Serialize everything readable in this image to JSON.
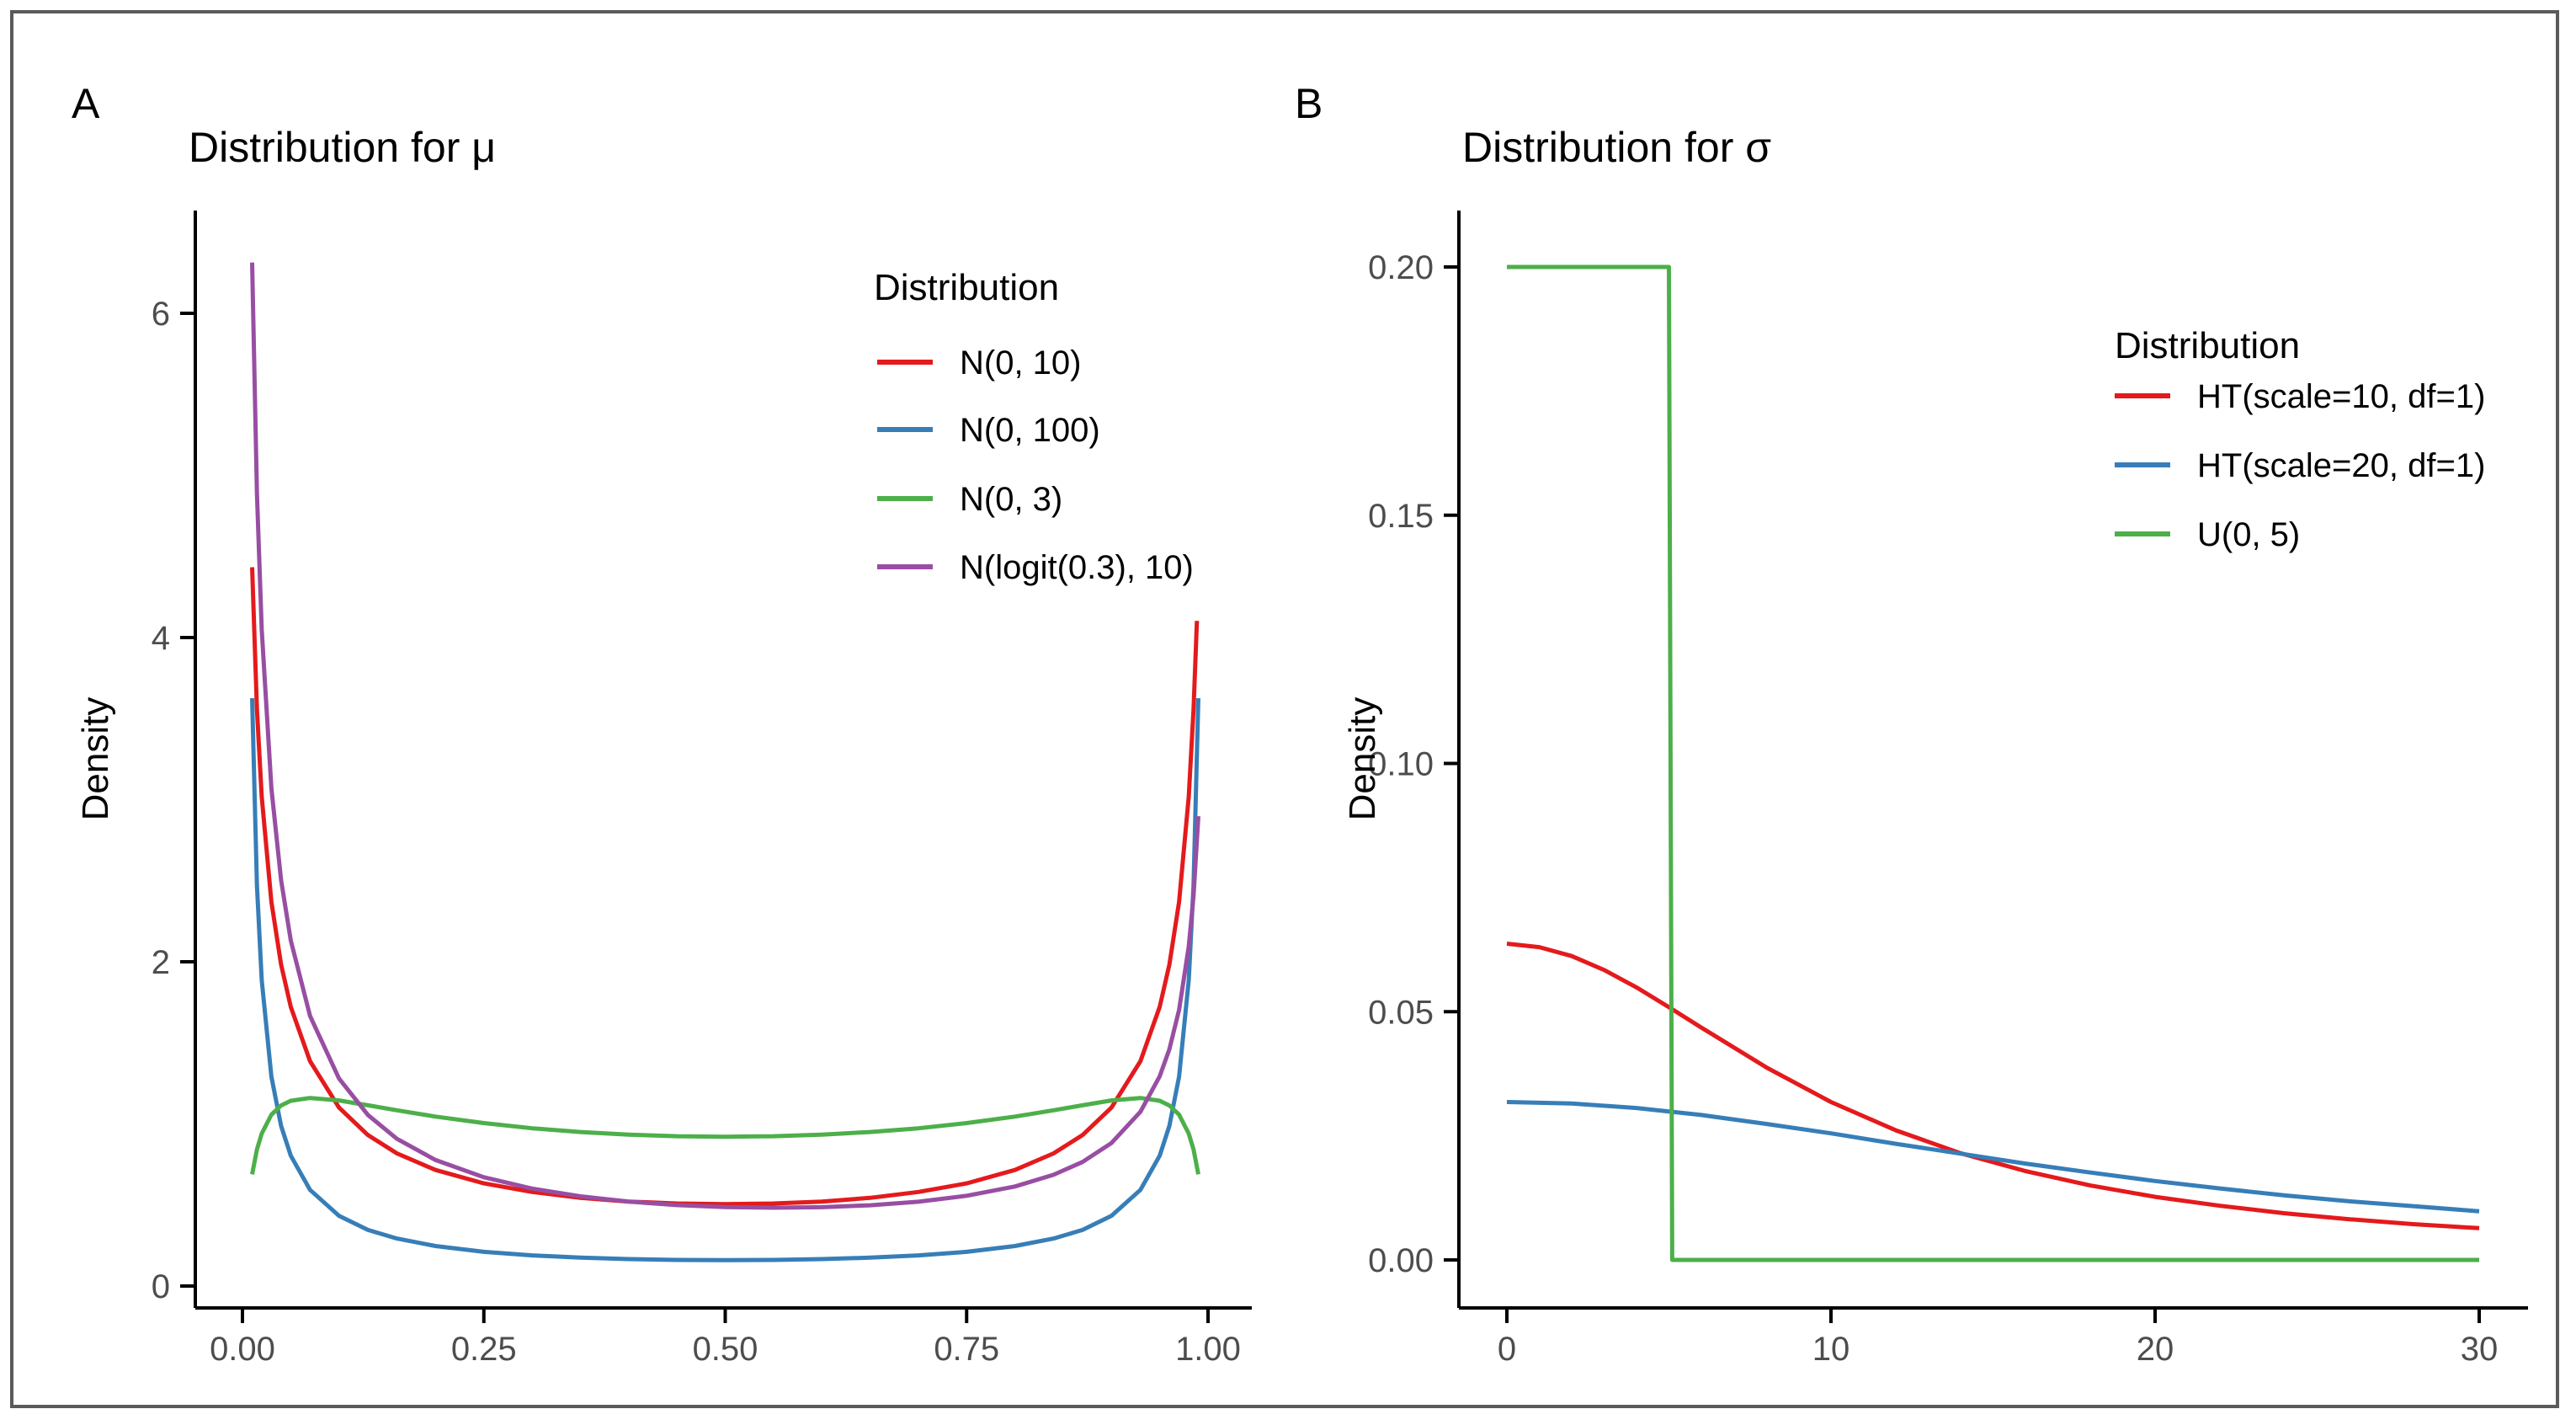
{
  "figure": {
    "background": "#ffffff",
    "border_color": "#5a5a5a"
  },
  "chart_data": [
    {
      "type": "line",
      "panel_label": "A",
      "title": "Distribution for μ",
      "xlabel": "",
      "ylabel": "Density",
      "xlim": [
        0,
        1
      ],
      "ylim": [
        0,
        6.63
      ],
      "grid": false,
      "x_axis": {
        "ticks": [
          0,
          0.25,
          0.5,
          0.75,
          1.0
        ],
        "labels": [
          "0.00",
          "0.25",
          "0.50",
          "0.75",
          "1.00"
        ]
      },
      "y_axis": {
        "ticks": [
          0,
          2,
          4,
          6
        ],
        "labels": [
          "0",
          "2",
          "4",
          "6"
        ]
      },
      "legend": {
        "title": "Distribution",
        "position": "inside-upper-right"
      },
      "series": [
        {
          "name": "N(0, 10)",
          "color": "#E41A1C",
          "points": [
            [
              0.01,
              4.434
            ],
            [
              0.015,
              3.558
            ],
            [
              0.02,
              3.018
            ],
            [
              0.03,
              2.369
            ],
            [
              0.04,
              1.983
            ],
            [
              0.05,
              1.722
            ],
            [
              0.07,
              1.387
            ],
            [
              0.1,
              1.101
            ],
            [
              0.13,
              0.931
            ],
            [
              0.16,
              0.818
            ],
            [
              0.2,
              0.716
            ],
            [
              0.25,
              0.633
            ],
            [
              0.3,
              0.58
            ],
            [
              0.35,
              0.544
            ],
            [
              0.4,
              0.521
            ],
            [
              0.45,
              0.509
            ],
            [
              0.5,
              0.505
            ],
            [
              0.55,
              0.509
            ],
            [
              0.6,
              0.521
            ],
            [
              0.65,
              0.544
            ],
            [
              0.7,
              0.58
            ],
            [
              0.75,
              0.633
            ],
            [
              0.8,
              0.716
            ],
            [
              0.84,
              0.818
            ],
            [
              0.87,
              0.931
            ],
            [
              0.9,
              1.101
            ],
            [
              0.93,
              1.387
            ],
            [
              0.95,
              1.722
            ],
            [
              0.96,
              1.983
            ],
            [
              0.97,
              2.369
            ],
            [
              0.98,
              3.018
            ],
            [
              0.985,
              3.558
            ],
            [
              0.9885,
              4.103
            ]
          ]
        },
        {
          "name": "N(0, 100)",
          "color": "#377EB8",
          "points": [
            [
              0.01,
              3.626
            ],
            [
              0.015,
              2.474
            ],
            [
              0.02,
              1.887
            ],
            [
              0.03,
              1.291
            ],
            [
              0.04,
              0.988
            ],
            [
              0.05,
              0.804
            ],
            [
              0.07,
              0.593
            ],
            [
              0.1,
              0.433
            ],
            [
              0.13,
              0.346
            ],
            [
              0.16,
              0.293
            ],
            [
              0.2,
              0.247
            ],
            [
              0.25,
              0.211
            ],
            [
              0.3,
              0.189
            ],
            [
              0.35,
              0.175
            ],
            [
              0.4,
              0.166
            ],
            [
              0.45,
              0.161
            ],
            [
              0.5,
              0.16
            ],
            [
              0.55,
              0.161
            ],
            [
              0.6,
              0.166
            ],
            [
              0.65,
              0.175
            ],
            [
              0.7,
              0.189
            ],
            [
              0.75,
              0.211
            ],
            [
              0.8,
              0.247
            ],
            [
              0.84,
              0.293
            ],
            [
              0.87,
              0.346
            ],
            [
              0.9,
              0.433
            ],
            [
              0.93,
              0.593
            ],
            [
              0.95,
              0.804
            ],
            [
              0.96,
              0.988
            ],
            [
              0.97,
              1.291
            ],
            [
              0.98,
              1.887
            ],
            [
              0.985,
              2.474
            ],
            [
              0.99,
              3.626
            ]
          ]
        },
        {
          "name": "N(0, 3)",
          "color": "#4DAF4A",
          "points": [
            [
              0.01,
              0.689
            ],
            [
              0.015,
              0.842
            ],
            [
              0.02,
              0.94
            ],
            [
              0.03,
              1.057
            ],
            [
              0.04,
              1.114
            ],
            [
              0.05,
              1.143
            ],
            [
              0.07,
              1.16
            ],
            [
              0.1,
              1.145
            ],
            [
              0.13,
              1.115
            ],
            [
              0.16,
              1.084
            ],
            [
              0.2,
              1.045
            ],
            [
              0.25,
              1.005
            ],
            [
              0.3,
              0.973
            ],
            [
              0.35,
              0.95
            ],
            [
              0.4,
              0.934
            ],
            [
              0.45,
              0.924
            ],
            [
              0.5,
              0.921
            ],
            [
              0.55,
              0.924
            ],
            [
              0.6,
              0.934
            ],
            [
              0.65,
              0.95
            ],
            [
              0.7,
              0.973
            ],
            [
              0.75,
              1.005
            ],
            [
              0.8,
              1.045
            ],
            [
              0.84,
              1.084
            ],
            [
              0.87,
              1.115
            ],
            [
              0.9,
              1.145
            ],
            [
              0.93,
              1.16
            ],
            [
              0.95,
              1.143
            ],
            [
              0.96,
              1.114
            ],
            [
              0.97,
              1.057
            ],
            [
              0.98,
              0.94
            ],
            [
              0.985,
              0.842
            ],
            [
              0.99,
              0.689
            ]
          ]
        },
        {
          "name": "N(logit(0.3), 10)",
          "color": "#984EA3",
          "points": [
            [
              0.01,
              6.313
            ],
            [
              0.015,
              4.893
            ],
            [
              0.02,
              4.049
            ],
            [
              0.03,
              3.069
            ],
            [
              0.04,
              2.504
            ],
            [
              0.05,
              2.132
            ],
            [
              0.07,
              1.666
            ],
            [
              0.1,
              1.28
            ],
            [
              0.13,
              1.055
            ],
            [
              0.16,
              0.908
            ],
            [
              0.2,
              0.777
            ],
            [
              0.25,
              0.671
            ],
            [
              0.3,
              0.601
            ],
            [
              0.35,
              0.553
            ],
            [
              0.4,
              0.521
            ],
            [
              0.45,
              0.499
            ],
            [
              0.5,
              0.487
            ],
            [
              0.55,
              0.483
            ],
            [
              0.6,
              0.486
            ],
            [
              0.65,
              0.498
            ],
            [
              0.7,
              0.52
            ],
            [
              0.75,
              0.557
            ],
            [
              0.8,
              0.614
            ],
            [
              0.84,
              0.686
            ],
            [
              0.87,
              0.765
            ],
            [
              0.9,
              0.882
            ],
            [
              0.93,
              1.075
            ],
            [
              0.95,
              1.294
            ],
            [
              0.96,
              1.461
            ],
            [
              0.97,
              1.703
            ],
            [
              0.98,
              2.094
            ],
            [
              0.985,
              2.407
            ],
            [
              0.99,
              2.898
            ]
          ]
        }
      ]
    },
    {
      "type": "line",
      "panel_label": "B",
      "title": "Distribution for σ",
      "xlabel": "",
      "ylabel": "Density",
      "xlim": [
        0,
        30
      ],
      "ylim": [
        0,
        0.211
      ],
      "grid": false,
      "x_axis": {
        "ticks": [
          0,
          10,
          20,
          30
        ],
        "labels": [
          "0",
          "10",
          "20",
          "30"
        ]
      },
      "y_axis": {
        "ticks": [
          0,
          0.05,
          0.1,
          0.15,
          0.2
        ],
        "labels": [
          "0.00",
          "0.05",
          "0.10",
          "0.15",
          "0.20"
        ]
      },
      "legend": {
        "title": "Distribution",
        "position": "inside-upper-right"
      },
      "series": [
        {
          "name": "HT(scale=10, df=1)",
          "color": "#E41A1C",
          "points": [
            [
              0,
              0.0637
            ],
            [
              1,
              0.063
            ],
            [
              2,
              0.0612
            ],
            [
              3,
              0.0584
            ],
            [
              4,
              0.0549
            ],
            [
              5,
              0.0509
            ],
            [
              6,
              0.0468
            ],
            [
              8,
              0.0388
            ],
            [
              10,
              0.0318
            ],
            [
              12,
              0.0261
            ],
            [
              14,
              0.0215
            ],
            [
              16,
              0.0179
            ],
            [
              18,
              0.015
            ],
            [
              20,
              0.0127
            ],
            [
              22,
              0.0109
            ],
            [
              24,
              0.0094
            ],
            [
              26,
              0.0082
            ],
            [
              28,
              0.0072
            ],
            [
              30,
              0.0064
            ]
          ]
        },
        {
          "name": "HT(scale=20, df=1)",
          "color": "#377EB8",
          "points": [
            [
              0,
              0.0318
            ],
            [
              2,
              0.0315
            ],
            [
              4,
              0.0306
            ],
            [
              6,
              0.0292
            ],
            [
              8,
              0.0274
            ],
            [
              10,
              0.0255
            ],
            [
              12,
              0.0234
            ],
            [
              14,
              0.0214
            ],
            [
              16,
              0.0194
            ],
            [
              18,
              0.0176
            ],
            [
              20,
              0.0159
            ],
            [
              22,
              0.0144
            ],
            [
              24,
              0.013
            ],
            [
              26,
              0.0118
            ],
            [
              28,
              0.0108
            ],
            [
              30,
              0.0098
            ]
          ]
        },
        {
          "name": "U(0, 5)",
          "color": "#4DAF4A",
          "points": [
            [
              0,
              0.2
            ],
            [
              5,
              0.2
            ],
            [
              5.1,
              0
            ],
            [
              30,
              0
            ]
          ]
        }
      ]
    }
  ]
}
